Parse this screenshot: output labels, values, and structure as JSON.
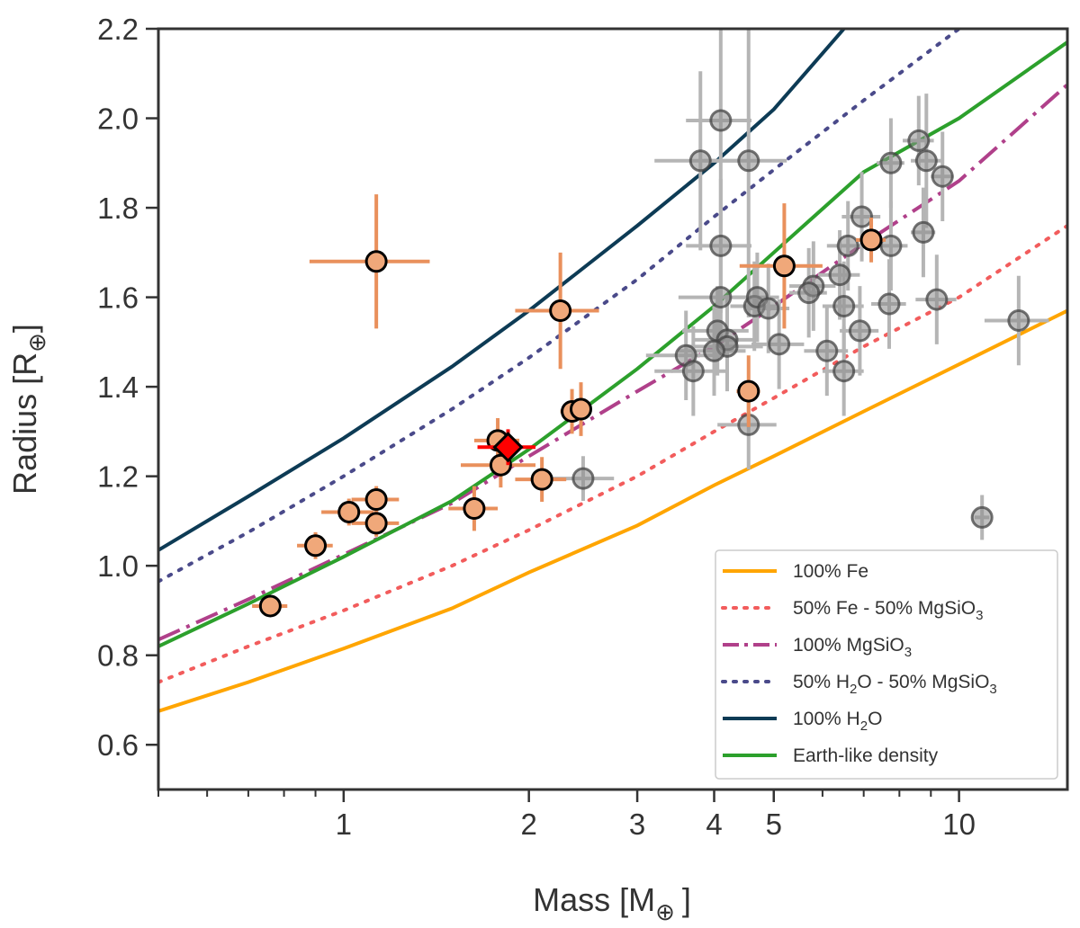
{
  "chart_data": {
    "type": "scatter",
    "title": "",
    "xlabel": {
      "main": "Mass [M",
      "sub": "⊕",
      "close": "]"
    },
    "ylabel": {
      "main": "Radius [R",
      "sub": "⊕",
      "close": "]"
    },
    "xscale": "log",
    "xlim": [
      0.5,
      15
    ],
    "ylim": [
      0.5,
      2.2
    ],
    "x_ticks": [
      1,
      2,
      3,
      4,
      5,
      10
    ],
    "x_tick_labels": [
      "1",
      "2",
      "3",
      "4",
      "5",
      "10"
    ],
    "x_minor_ticks": [
      0.5,
      0.6,
      0.7,
      0.8,
      0.9,
      6,
      7,
      8,
      9
    ],
    "y_ticks": [
      0.6,
      0.8,
      1.0,
      1.2,
      1.4,
      1.6,
      1.8,
      2.0,
      2.2
    ],
    "y_tick_labels": [
      "0.6",
      "0.8",
      "1.0",
      "1.2",
      "1.4",
      "1.6",
      "1.8",
      "2.0",
      "2.2"
    ],
    "grid": false,
    "legend_position": "bottom-right",
    "colors": {
      "fe": "#ffa500",
      "fe_mgsio3": "#f25c5c",
      "mgsio3": "#b0408a",
      "h2o_mgsio3": "#4a4a8a",
      "h2o": "#0d3b55",
      "earth": "#2ca02c",
      "highlight_point": "#f0a87a",
      "highlight_err": "#e9905c",
      "other_point": "#8c8c8c",
      "other_err": "#b5b5b5",
      "target": "#ff0000"
    },
    "curves": [
      {
        "name": "100% Fe",
        "label_main": "100% Fe",
        "style": "solid",
        "color_key": "fe",
        "points": [
          [
            0.5,
            0.675
          ],
          [
            0.7,
            0.74
          ],
          [
            1,
            0.815
          ],
          [
            1.5,
            0.905
          ],
          [
            2,
            0.985
          ],
          [
            3,
            1.09
          ],
          [
            4,
            1.18
          ],
          [
            5,
            1.245
          ],
          [
            7,
            1.345
          ],
          [
            10,
            1.45
          ],
          [
            15,
            1.57
          ]
        ]
      },
      {
        "name": "50% Fe - 50% MgSiO3",
        "label_main": "50% Fe - 50% MgSiO",
        "label_sub": "3",
        "style": "dotted",
        "color_key": "fe_mgsio3",
        "points": [
          [
            0.5,
            0.74
          ],
          [
            0.7,
            0.82
          ],
          [
            1,
            0.9
          ],
          [
            1.5,
            1.0
          ],
          [
            2,
            1.08
          ],
          [
            3,
            1.2
          ],
          [
            4,
            1.3
          ],
          [
            5,
            1.375
          ],
          [
            7,
            1.49
          ],
          [
            10,
            1.6
          ],
          [
            15,
            1.76
          ]
        ]
      },
      {
        "name": "100% MgSiO3",
        "label_main": "100% MgSiO",
        "label_sub": "3",
        "style": "dashdot",
        "color_key": "mgsio3",
        "points": [
          [
            0.5,
            0.835
          ],
          [
            0.7,
            0.925
          ],
          [
            1,
            1.025
          ],
          [
            1.5,
            1.14
          ],
          [
            2,
            1.245
          ],
          [
            3,
            1.39
          ],
          [
            4,
            1.49
          ],
          [
            5,
            1.58
          ],
          [
            7,
            1.72
          ],
          [
            10,
            1.86
          ],
          [
            15,
            2.075
          ]
        ]
      },
      {
        "name": "50% H2O - 50% MgSiO3",
        "label_main": "50% H",
        "label_sub": "2",
        "label_rest": "O - 50% MgSiO",
        "label_sub2": "3",
        "style": "dotted",
        "color_key": "h2o_mgsio3",
        "points": [
          [
            0.5,
            0.965
          ],
          [
            0.7,
            1.075
          ],
          [
            1,
            1.2
          ],
          [
            1.5,
            1.35
          ],
          [
            2,
            1.465
          ],
          [
            3,
            1.64
          ],
          [
            4,
            1.78
          ],
          [
            5,
            1.885
          ],
          [
            7,
            2.04
          ],
          [
            10,
            2.2
          ]
        ]
      },
      {
        "name": "100% H2O",
        "label_main": "100% H",
        "label_sub": "2",
        "label_rest": "O",
        "style": "solid",
        "color_key": "h2o",
        "points": [
          [
            0.5,
            1.035
          ],
          [
            0.7,
            1.155
          ],
          [
            1,
            1.285
          ],
          [
            1.5,
            1.445
          ],
          [
            2,
            1.57
          ],
          [
            3,
            1.76
          ],
          [
            4,
            1.9
          ],
          [
            5,
            2.02
          ],
          [
            6.5,
            2.2
          ]
        ]
      },
      {
        "name": "Earth-like density",
        "label_main": "Earth-like density",
        "style": "solid",
        "color_key": "earth",
        "points": [
          [
            0.5,
            0.82
          ],
          [
            0.7,
            0.915
          ],
          [
            1,
            1.02
          ],
          [
            1.5,
            1.145
          ],
          [
            2,
            1.26
          ],
          [
            3,
            1.44
          ],
          [
            4,
            1.58
          ],
          [
            5,
            1.7
          ],
          [
            7,
            1.88
          ],
          [
            10,
            2.0
          ],
          [
            15,
            2.17
          ]
        ]
      }
    ],
    "other_planets": [
      {
        "x": 4.1,
        "y": 1.995,
        "xerr": 0.5,
        "yerr": 0.25
      },
      {
        "x": 3.8,
        "y": 1.905,
        "xerr": 0.6,
        "yerr": 0.2
      },
      {
        "x": 4.55,
        "y": 1.905,
        "xerr": 0.7,
        "yerr": 0.35
      },
      {
        "x": 4.1,
        "y": 1.715,
        "xerr": 0.5,
        "yerr": 0.15
      },
      {
        "x": 4.1,
        "y": 1.6,
        "xerr": 0.6,
        "yerr": 0.1
      },
      {
        "x": 4.05,
        "y": 1.525,
        "xerr": 0.5,
        "yerr": 0.1
      },
      {
        "x": 4.2,
        "y": 1.505,
        "xerr": 0.5,
        "yerr": 0.1
      },
      {
        "x": 4.2,
        "y": 1.49,
        "xerr": 0.6,
        "yerr": 0.1
      },
      {
        "x": 4.0,
        "y": 1.48,
        "xerr": 0.5,
        "yerr": 0.1
      },
      {
        "x": 3.6,
        "y": 1.47,
        "xerr": 0.5,
        "yerr": 0.1
      },
      {
        "x": 3.7,
        "y": 1.435,
        "xerr": 0.5,
        "yerr": 0.1
      },
      {
        "x": 4.65,
        "y": 1.58,
        "xerr": 0.4,
        "yerr": 0.1
      },
      {
        "x": 4.7,
        "y": 1.6,
        "xerr": 0.4,
        "yerr": 0.1
      },
      {
        "x": 4.9,
        "y": 1.575,
        "xerr": 0.4,
        "yerr": 0.1
      },
      {
        "x": 5.1,
        "y": 1.495,
        "xerr": 0.5,
        "yerr": 0.1
      },
      {
        "x": 4.55,
        "y": 1.315,
        "xerr": 0.5,
        "yerr": 0.1
      },
      {
        "x": 5.8,
        "y": 1.625,
        "xerr": 0.5,
        "yerr": 0.1
      },
      {
        "x": 5.7,
        "y": 1.61,
        "xerr": 0.4,
        "yerr": 0.1
      },
      {
        "x": 6.4,
        "y": 1.65,
        "xerr": 0.5,
        "yerr": 0.1
      },
      {
        "x": 6.5,
        "y": 1.58,
        "xerr": 0.5,
        "yerr": 0.1
      },
      {
        "x": 6.1,
        "y": 1.48,
        "xerr": 0.5,
        "yerr": 0.1
      },
      {
        "x": 6.5,
        "y": 1.435,
        "xerr": 0.5,
        "yerr": 0.1
      },
      {
        "x": 6.9,
        "y": 1.525,
        "xerr": 0.5,
        "yerr": 0.1
      },
      {
        "x": 6.6,
        "y": 1.715,
        "xerr": 0.5,
        "yerr": 0.1
      },
      {
        "x": 6.95,
        "y": 1.78,
        "xerr": 0.5,
        "yerr": 0.1
      },
      {
        "x": 7.75,
        "y": 1.9,
        "xerr": 0.4,
        "yerr": 0.1
      },
      {
        "x": 7.75,
        "y": 1.715,
        "xerr": 0.5,
        "yerr": 0.1
      },
      {
        "x": 7.7,
        "y": 1.585,
        "xerr": 0.5,
        "yerr": 0.1
      },
      {
        "x": 8.6,
        "y": 1.95,
        "xerr": 0.5,
        "yerr": 0.1
      },
      {
        "x": 8.85,
        "y": 1.905,
        "xerr": 0.5,
        "yerr": 0.15
      },
      {
        "x": 8.75,
        "y": 1.745,
        "xerr": 0.4,
        "yerr": 0.1
      },
      {
        "x": 9.4,
        "y": 1.87,
        "xerr": 0.4,
        "yerr": 0.1
      },
      {
        "x": 9.2,
        "y": 1.595,
        "xerr": 0.7,
        "yerr": 0.1
      },
      {
        "x": 12.5,
        "y": 1.548,
        "xerr": 1.5,
        "yerr": 0.1
      },
      {
        "x": 10.9,
        "y": 1.108,
        "xerr": 0.3,
        "yerr": 0.05
      },
      {
        "x": 2.45,
        "y": 1.195,
        "xerr": 0.3,
        "yerr": 0.05
      }
    ],
    "highlighted_planets": [
      {
        "x": 1.13,
        "y": 1.68,
        "xerr": 0.25,
        "yerr": 0.15
      },
      {
        "x": 0.76,
        "y": 0.91,
        "xerr": 0.05,
        "yerr": 0.02
      },
      {
        "x": 0.9,
        "y": 1.045,
        "xerr": 0.06,
        "yerr": 0.03
      },
      {
        "x": 1.02,
        "y": 1.12,
        "xerr": 0.1,
        "yerr": 0.03
      },
      {
        "x": 1.13,
        "y": 1.148,
        "xerr": 0.1,
        "yerr": 0.03
      },
      {
        "x": 1.13,
        "y": 1.095,
        "xerr": 0.1,
        "yerr": 0.03
      },
      {
        "x": 1.63,
        "y": 1.128,
        "xerr": 0.15,
        "yerr": 0.05
      },
      {
        "x": 1.78,
        "y": 1.28,
        "xerr": 0.15,
        "yerr": 0.05
      },
      {
        "x": 1.8,
        "y": 1.225,
        "xerr": 0.25,
        "yerr": 0.05
      },
      {
        "x": 2.1,
        "y": 1.193,
        "xerr": 0.2,
        "yerr": 0.05
      },
      {
        "x": 2.25,
        "y": 1.57,
        "xerr": 0.35,
        "yerr": 0.13
      },
      {
        "x": 2.35,
        "y": 1.345,
        "xerr": 0.1,
        "yerr": 0.05
      },
      {
        "x": 2.43,
        "y": 1.35,
        "xerr": 0.1,
        "yerr": 0.06
      },
      {
        "x": 4.55,
        "y": 1.39,
        "xerr": 0.2,
        "yerr": 0.08
      },
      {
        "x": 5.2,
        "y": 1.67,
        "xerr": 0.8,
        "yerr": 0.14
      },
      {
        "x": 7.2,
        "y": 1.728,
        "xerr": 0.4,
        "yerr": 0.05
      }
    ],
    "target_planet": {
      "x": 1.85,
      "y": 1.265,
      "xerr": 0.2,
      "yerr": 0.04
    }
  }
}
